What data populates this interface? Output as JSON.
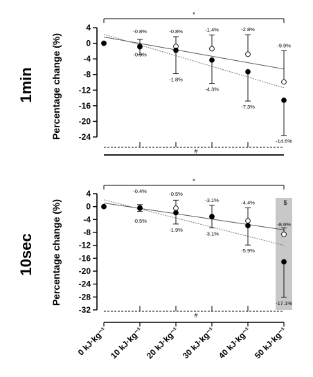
{
  "chart_data": [
    {
      "type": "scatter",
      "panel": "top",
      "row_label": "1min",
      "ylabel": "Percentage change (%)",
      "ylim": [
        -26,
        4
      ],
      "yticks": [
        4,
        0,
        -4,
        -8,
        -12,
        -16,
        -20,
        -24
      ],
      "x": [
        0,
        10,
        20,
        30,
        40,
        50
      ],
      "series": [
        {
          "marker": "open-circle",
          "values": [
            0,
            -0.8,
            -0.8,
            -1.4,
            -2.8,
            -9.9
          ],
          "error": [
            0,
            1.8,
            2.5,
            3.5,
            5.0,
            8.0
          ],
          "labels": [
            "",
            "-0.8%",
            "-0.8%",
            "-1.4%",
            "-2.8%",
            "-9.9%"
          ],
          "trendline": {
            "style": "solid",
            "y_start": 1.6,
            "y_end": -6.6
          }
        },
        {
          "marker": "filled-circle",
          "values": [
            0,
            -0.9,
            -1.8,
            -4.3,
            -7.3,
            -14.6
          ],
          "error": [
            0,
            2.0,
            6.0,
            6.0,
            7.5,
            9.0
          ],
          "labels": [
            "",
            "-0.9%",
            "-1.8%",
            "-4.3%",
            "-7.3%",
            "-14.6%"
          ],
          "trendline": {
            "style": "dotted",
            "y_start": 2.3,
            "y_end": -11.4
          }
        }
      ],
      "top_marker": "*",
      "bottom_marker": "#"
    },
    {
      "type": "scatter",
      "panel": "bottom",
      "row_label": "10sec",
      "ylabel": "Percentage change (%)",
      "ylim": [
        -32,
        4
      ],
      "yticks": [
        4,
        0,
        -4,
        -8,
        -12,
        -16,
        -20,
        -24,
        -28,
        -32
      ],
      "x": [
        0,
        10,
        20,
        30,
        40,
        50
      ],
      "xtick_labels": [
        "0 kJ·kg⁻¹",
        "10 kJ·kg⁻¹",
        "20 kJ·kg⁻¹",
        "30 kJ·kg⁻¹",
        "40 kJ·kg⁻¹",
        "50 kJ·kg⁻¹"
      ],
      "series": [
        {
          "marker": "open-circle",
          "values": [
            0,
            -0.4,
            -0.5,
            -3.1,
            -4.4,
            -8.6
          ],
          "error": [
            0,
            1.0,
            2.5,
            3.5,
            4.0,
            2.0
          ],
          "labels": [
            "",
            "-0.4%",
            "-0.5%",
            "-3.1%",
            "-4.4%",
            "-8.6%"
          ],
          "trendline": {
            "style": "solid",
            "y_start": 1.1,
            "y_end": -7.2
          }
        },
        {
          "marker": "filled-circle",
          "values": [
            0,
            -0.5,
            -1.9,
            -3.1,
            -5.9,
            -17.1
          ],
          "error": [
            0,
            1.0,
            3.5,
            3.5,
            6.0,
            11.0
          ],
          "labels": [
            "",
            "-0.5%",
            "-1.9%",
            "-3.1%",
            "-5.9%",
            "-17.1%"
          ],
          "trendline": {
            "style": "dotted",
            "y_start": 2.1,
            "y_end": -12.0
          }
        }
      ],
      "top_marker": "*",
      "bottom_marker": "#",
      "highlight": {
        "x": 50,
        "marker": "$",
        "color": "#c8c8c8"
      }
    }
  ]
}
